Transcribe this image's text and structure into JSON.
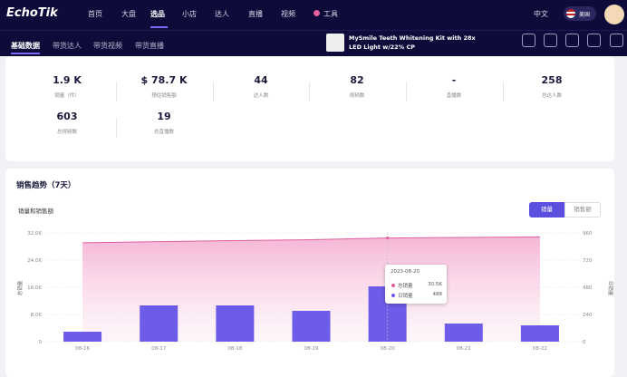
{
  "nav": {
    "logo": "EchoTik",
    "items": [
      "首页",
      "大盘",
      "选品",
      "小店",
      "达人",
      "直播",
      "视频",
      "工具"
    ],
    "lang": "中文",
    "region": "美国"
  },
  "tabs": [
    "基础数据",
    "带货达人",
    "带货视频",
    "带货直播"
  ],
  "product": {
    "title": "MySmile Teeth Whitening Kit with 28x LED Light w/22% CP"
  },
  "stats": [
    {
      "value": "1.9 K",
      "label": "销量（件）"
    },
    {
      "value": "$ 78.7 K",
      "label": "预估销售额"
    },
    {
      "value": "44",
      "label": "达人数"
    },
    {
      "value": "82",
      "label": "视频数"
    },
    {
      "value": "-",
      "label": "直播数"
    },
    {
      "value": "258",
      "label": "总达人数"
    },
    {
      "value": "603",
      "label": "总视频数"
    },
    {
      "value": "19",
      "label": "总直播数"
    }
  ],
  "section_title": "销售趋势（7天）",
  "chart_data": {
    "type": "combo",
    "title": "销量和销售额",
    "toggle": [
      "销量",
      "销售额"
    ],
    "categories": [
      "08-16",
      "08-17",
      "08-18",
      "08-19",
      "08-20",
      "08-21",
      "08-22"
    ],
    "series": [
      {
        "name": "总销量",
        "type": "line",
        "axis": "y",
        "color": "#e0609f",
        "values": [
          29100,
          29420,
          29740,
          30010,
          30500,
          30660,
          30800
        ]
      },
      {
        "name": "日销量",
        "type": "bar",
        "axis": "y2",
        "color": "#6c5ce7",
        "values": [
          88,
          320,
          320,
          272,
          488,
          160,
          144
        ]
      }
    ],
    "ylim": [
      0,
      32000
    ],
    "yticks": [
      0,
      {
        "value": 8000,
        "label": "8.0K"
      },
      {
        "value": 16000,
        "label": "16.0K"
      },
      {
        "value": 24000,
        "label": "24.0K"
      },
      {
        "value": 32000,
        "label": "32.0K"
      }
    ],
    "y2lim": [
      0,
      960
    ],
    "y2ticks": [
      0,
      240,
      480,
      720,
      960
    ],
    "y_label": "总销量",
    "y2_label": "日销量",
    "grid": true,
    "tooltip": {
      "title": "2023-08-20",
      "items": [
        {
          "value": "30.5K"
        },
        {
          "value": "488"
        }
      ]
    }
  }
}
